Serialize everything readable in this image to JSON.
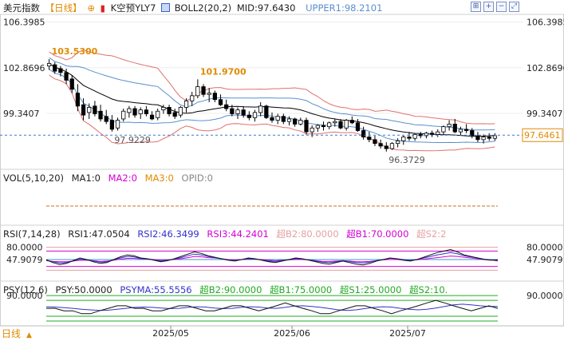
{
  "header": {
    "symbol": "美元指数",
    "period": "【日线】",
    "kline_label": "K空预YLY7",
    "boll_label": "BOLL2(20,2)",
    "mid_label": "MID:97.6430",
    "upper_label": "UPPER1:98.2101"
  },
  "toolbar": {
    "icons": [
      "fit-icon",
      "zoom-in-icon",
      "zoom-out-icon",
      "fullscreen-icon"
    ],
    "glyphs": [
      "⊞",
      "+",
      "−",
      "⤢"
    ]
  },
  "price_axis": {
    "ticks": [
      "106.3985",
      "102.8696",
      "99.3407"
    ],
    "current_price": "97.6461"
  },
  "annotations": {
    "high_1": "103.5300",
    "high_2": "101.9700",
    "low_1": "97.9229",
    "low_2": "96.3729"
  },
  "vol_panel": {
    "labels": [
      "VOL(5,10,20)",
      "MA1:0",
      "MA2:0",
      "MA3:0",
      "OPID:0"
    ],
    "colors": [
      "#222222",
      "#222222",
      "#d400d4",
      "#e08a00",
      "#888888"
    ]
  },
  "rsi_panel": {
    "labels": [
      "RSI(7,14,28)",
      "RSI1:47.0504",
      "RSI2:46.3499",
      "RSI3:44.2401",
      "超B2:80.0000",
      "超B1:70.0000",
      "超S2:2"
    ],
    "colors": [
      "#222222",
      "#222222",
      "#3333cc",
      "#d400d4",
      "#e8a0a0",
      "#d400d4",
      "#e8a0a0"
    ],
    "axis_ticks": [
      "80.0000",
      "47.9079"
    ]
  },
  "psy_panel": {
    "labels": [
      "PSY(12,6)",
      "PSY:50.0000",
      "PSYMA:55.5556",
      "超B2:90.0000",
      "超B1:75.0000",
      "超S1:25.0000",
      "超S2:10."
    ],
    "colors": [
      "#222222",
      "#222222",
      "#3333cc",
      "#22aa22",
      "#22aa22",
      "#22aa22",
      "#22aa22"
    ],
    "axis_ticks": [
      "90.0000"
    ]
  },
  "x_axis": {
    "period_tab": "日线",
    "dates": [
      "2025/05",
      "2025/06",
      "2025/07"
    ]
  },
  "colors": {
    "up": "#000000",
    "down": "#ffffff",
    "mid": "#000000",
    "upper": "#e07070",
    "inner": "#5a8fd0",
    "price_line": "#3a7ac8",
    "current_label": "#e08a00",
    "annotation": "#e08a00"
  },
  "chart_data": {
    "type": "candlestick",
    "y_axis": {
      "ticks": [
        106.3985,
        102.8696,
        99.3407
      ],
      "ylim": [
        95.0,
        107.0
      ]
    },
    "last_price": 97.6461,
    "candles": [
      {
        "o": 103.0,
        "h": 103.53,
        "l": 102.7,
        "c": 103.2
      },
      {
        "o": 103.1,
        "h": 103.3,
        "l": 102.4,
        "c": 102.6
      },
      {
        "o": 102.8,
        "h": 103.0,
        "l": 102.2,
        "c": 102.5
      },
      {
        "o": 102.5,
        "h": 102.8,
        "l": 101.6,
        "c": 101.9
      },
      {
        "o": 102.0,
        "h": 102.3,
        "l": 100.9,
        "c": 101.2
      },
      {
        "o": 100.9,
        "h": 101.6,
        "l": 99.5,
        "c": 99.9
      },
      {
        "o": 100.0,
        "h": 100.5,
        "l": 98.8,
        "c": 99.2
      },
      {
        "o": 99.4,
        "h": 100.1,
        "l": 98.9,
        "c": 99.8
      },
      {
        "o": 99.9,
        "h": 100.3,
        "l": 99.1,
        "c": 99.3
      },
      {
        "o": 99.5,
        "h": 100.0,
        "l": 98.7,
        "c": 98.9
      },
      {
        "o": 99.1,
        "h": 99.6,
        "l": 98.5,
        "c": 98.7
      },
      {
        "o": 98.8,
        "h": 99.2,
        "l": 97.92,
        "c": 98.1
      },
      {
        "o": 98.2,
        "h": 99.0,
        "l": 98.0,
        "c": 98.8
      },
      {
        "o": 98.9,
        "h": 99.7,
        "l": 98.7,
        "c": 99.5
      },
      {
        "o": 99.4,
        "h": 99.9,
        "l": 99.0,
        "c": 99.7
      },
      {
        "o": 99.7,
        "h": 99.9,
        "l": 99.0,
        "c": 99.2
      },
      {
        "o": 99.3,
        "h": 99.8,
        "l": 98.9,
        "c": 99.6
      },
      {
        "o": 99.6,
        "h": 99.9,
        "l": 99.1,
        "c": 99.3
      },
      {
        "o": 99.2,
        "h": 99.5,
        "l": 98.8,
        "c": 98.9
      },
      {
        "o": 99.0,
        "h": 99.7,
        "l": 98.8,
        "c": 99.5
      },
      {
        "o": 99.6,
        "h": 100.0,
        "l": 99.3,
        "c": 99.8
      },
      {
        "o": 99.8,
        "h": 100.0,
        "l": 99.1,
        "c": 99.3
      },
      {
        "o": 99.4,
        "h": 99.7,
        "l": 98.9,
        "c": 99.1
      },
      {
        "o": 99.2,
        "h": 99.9,
        "l": 99.0,
        "c": 99.8
      },
      {
        "o": 99.8,
        "h": 100.5,
        "l": 99.4,
        "c": 100.3
      },
      {
        "o": 100.3,
        "h": 101.0,
        "l": 99.9,
        "c": 100.7
      },
      {
        "o": 100.7,
        "h": 101.97,
        "l": 100.5,
        "c": 101.4
      },
      {
        "o": 101.4,
        "h": 101.6,
        "l": 100.6,
        "c": 100.8
      },
      {
        "o": 100.8,
        "h": 101.3,
        "l": 100.2,
        "c": 100.9
      },
      {
        "o": 100.9,
        "h": 101.1,
        "l": 100.2,
        "c": 100.4
      },
      {
        "o": 100.4,
        "h": 100.8,
        "l": 99.9,
        "c": 100.0
      },
      {
        "o": 100.0,
        "h": 100.4,
        "l": 99.5,
        "c": 99.7
      },
      {
        "o": 99.7,
        "h": 100.0,
        "l": 99.1,
        "c": 99.3
      },
      {
        "o": 99.3,
        "h": 99.8,
        "l": 98.9,
        "c": 99.6
      },
      {
        "o": 99.6,
        "h": 99.9,
        "l": 99.0,
        "c": 99.2
      },
      {
        "o": 99.2,
        "h": 99.5,
        "l": 98.8,
        "c": 99.0
      },
      {
        "o": 99.0,
        "h": 99.6,
        "l": 98.7,
        "c": 99.4
      },
      {
        "o": 99.4,
        "h": 100.2,
        "l": 99.1,
        "c": 99.9
      },
      {
        "o": 99.9,
        "h": 100.0,
        "l": 98.9,
        "c": 99.0
      },
      {
        "o": 99.0,
        "h": 99.4,
        "l": 98.6,
        "c": 98.8
      },
      {
        "o": 98.8,
        "h": 99.3,
        "l": 98.5,
        "c": 99.1
      },
      {
        "o": 99.1,
        "h": 99.3,
        "l": 98.5,
        "c": 98.7
      },
      {
        "o": 98.7,
        "h": 99.1,
        "l": 98.4,
        "c": 98.9
      },
      {
        "o": 98.9,
        "h": 99.0,
        "l": 98.3,
        "c": 98.5
      },
      {
        "o": 98.5,
        "h": 99.0,
        "l": 98.4,
        "c": 98.8
      },
      {
        "o": 98.8,
        "h": 99.0,
        "l": 97.7,
        "c": 97.9
      },
      {
        "o": 97.9,
        "h": 98.4,
        "l": 97.5,
        "c": 98.2
      },
      {
        "o": 98.2,
        "h": 98.5,
        "l": 97.9,
        "c": 98.4
      },
      {
        "o": 98.4,
        "h": 98.7,
        "l": 98.0,
        "c": 98.3
      },
      {
        "o": 98.3,
        "h": 98.7,
        "l": 98.1,
        "c": 98.6
      },
      {
        "o": 98.6,
        "h": 98.9,
        "l": 98.3,
        "c": 98.7
      },
      {
        "o": 98.7,
        "h": 98.9,
        "l": 98.1,
        "c": 98.2
      },
      {
        "o": 98.2,
        "h": 98.9,
        "l": 98.0,
        "c": 98.8
      },
      {
        "o": 98.8,
        "h": 99.1,
        "l": 98.5,
        "c": 98.6
      },
      {
        "o": 98.6,
        "h": 98.9,
        "l": 97.9,
        "c": 98.0
      },
      {
        "o": 98.0,
        "h": 98.3,
        "l": 97.3,
        "c": 97.5
      },
      {
        "o": 97.5,
        "h": 97.9,
        "l": 97.1,
        "c": 97.3
      },
      {
        "o": 97.3,
        "h": 97.6,
        "l": 96.8,
        "c": 97.0
      },
      {
        "o": 97.0,
        "h": 97.3,
        "l": 96.6,
        "c": 96.8
      },
      {
        "o": 96.8,
        "h": 97.1,
        "l": 96.37,
        "c": 96.6
      },
      {
        "o": 96.6,
        "h": 97.1,
        "l": 96.5,
        "c": 97.0
      },
      {
        "o": 97.0,
        "h": 97.4,
        "l": 96.7,
        "c": 97.2
      },
      {
        "o": 97.2,
        "h": 97.6,
        "l": 96.9,
        "c": 97.5
      },
      {
        "o": 97.5,
        "h": 97.9,
        "l": 97.2,
        "c": 97.4
      },
      {
        "o": 97.4,
        "h": 97.8,
        "l": 97.2,
        "c": 97.7
      },
      {
        "o": 97.7,
        "h": 97.9,
        "l": 97.4,
        "c": 97.6
      },
      {
        "o": 97.6,
        "h": 97.9,
        "l": 97.4,
        "c": 97.8
      },
      {
        "o": 97.8,
        "h": 98.0,
        "l": 97.5,
        "c": 97.7
      },
      {
        "o": 97.7,
        "h": 98.1,
        "l": 97.5,
        "c": 97.9
      },
      {
        "o": 97.9,
        "h": 98.4,
        "l": 97.7,
        "c": 98.3
      },
      {
        "o": 98.3,
        "h": 98.8,
        "l": 98.0,
        "c": 98.5
      },
      {
        "o": 98.5,
        "h": 98.9,
        "l": 97.8,
        "c": 97.9
      },
      {
        "o": 97.9,
        "h": 98.3,
        "l": 97.6,
        "c": 98.1
      },
      {
        "o": 98.1,
        "h": 98.5,
        "l": 97.8,
        "c": 98.0
      },
      {
        "o": 98.0,
        "h": 98.2,
        "l": 97.4,
        "c": 97.6
      },
      {
        "o": 97.6,
        "h": 97.9,
        "l": 97.1,
        "c": 97.3
      },
      {
        "o": 97.3,
        "h": 97.7,
        "l": 97.0,
        "c": 97.5
      },
      {
        "o": 97.5,
        "h": 97.8,
        "l": 97.2,
        "c": 97.4
      },
      {
        "o": 97.4,
        "h": 97.8,
        "l": 97.2,
        "c": 97.6
      }
    ],
    "rsi": {
      "ylim": [
        0,
        100
      ],
      "levels": [
        80,
        70,
        47.9079,
        30,
        20
      ],
      "rsi1": [
        47,
        40,
        35,
        38,
        45,
        52,
        48,
        42,
        38,
        40,
        48,
        55,
        60,
        58,
        52,
        50,
        46,
        42,
        45,
        50,
        56,
        62,
        68,
        64,
        58,
        54,
        50,
        46,
        44,
        48,
        52,
        50,
        46,
        42,
        40,
        44,
        48,
        52,
        50,
        46,
        42,
        38,
        36,
        40,
        44,
        40,
        36,
        34,
        38,
        44,
        48,
        52,
        50,
        46,
        44,
        48,
        54,
        60,
        66,
        70,
        74,
        68,
        60,
        56,
        52,
        48,
        46,
        47
      ],
      "rsi2": [
        46,
        42,
        39,
        40,
        44,
        49,
        47,
        44,
        41,
        42,
        47,
        52,
        56,
        55,
        51,
        50,
        47,
        44,
        46,
        49,
        53,
        58,
        62,
        60,
        56,
        53,
        50,
        47,
        46,
        48,
        50,
        49,
        47,
        44,
        43,
        45,
        47,
        50,
        49,
        47,
        44,
        41,
        40,
        42,
        45,
        43,
        40,
        39,
        41,
        45,
        48,
        51,
        50,
        48,
        46,
        48,
        52,
        56,
        60,
        63,
        66,
        63,
        58,
        55,
        52,
        49,
        47,
        46
      ],
      "rsi3": [
        45,
        43,
        42,
        42,
        44,
        46,
        46,
        45,
        43,
        44,
        46,
        49,
        51,
        51,
        50,
        49,
        48,
        46,
        47,
        48,
        50,
        53,
        56,
        55,
        53,
        52,
        50,
        48,
        47,
        48,
        49,
        49,
        48,
        46,
        45,
        46,
        47,
        48,
        48,
        47,
        45,
        43,
        43,
        44,
        45,
        44,
        42,
        42,
        43,
        45,
        47,
        48,
        48,
        47,
        46,
        47,
        49,
        51,
        53,
        55,
        57,
        56,
        54,
        52,
        50,
        48,
        47,
        44
      ]
    },
    "psy": {
      "ylim": [
        0,
        100
      ],
      "levels": [
        90,
        75,
        25,
        10
      ],
      "psy": [
        50,
        50,
        42,
        42,
        33,
        33,
        42,
        50,
        58,
        58,
        50,
        50,
        42,
        42,
        50,
        58,
        58,
        50,
        42,
        42,
        50,
        58,
        58,
        50,
        42,
        50,
        58,
        67,
        58,
        50,
        42,
        33,
        33,
        42,
        50,
        58,
        58,
        50,
        42,
        33,
        42,
        50,
        58,
        67,
        75,
        67,
        58,
        50,
        42,
        50,
        58,
        50
      ],
      "psyma": [
        55,
        54,
        52,
        50,
        47,
        45,
        43,
        44,
        47,
        50,
        53,
        54,
        53,
        51,
        49,
        50,
        53,
        55,
        54,
        51,
        49,
        50,
        53,
        55,
        54,
        51,
        50,
        53,
        57,
        58,
        56,
        53,
        49,
        45,
        43,
        45,
        49,
        53,
        55,
        54,
        50,
        47,
        45,
        47,
        51,
        56,
        61,
        63,
        61,
        58,
        56,
        55.5556
      ]
    }
  }
}
